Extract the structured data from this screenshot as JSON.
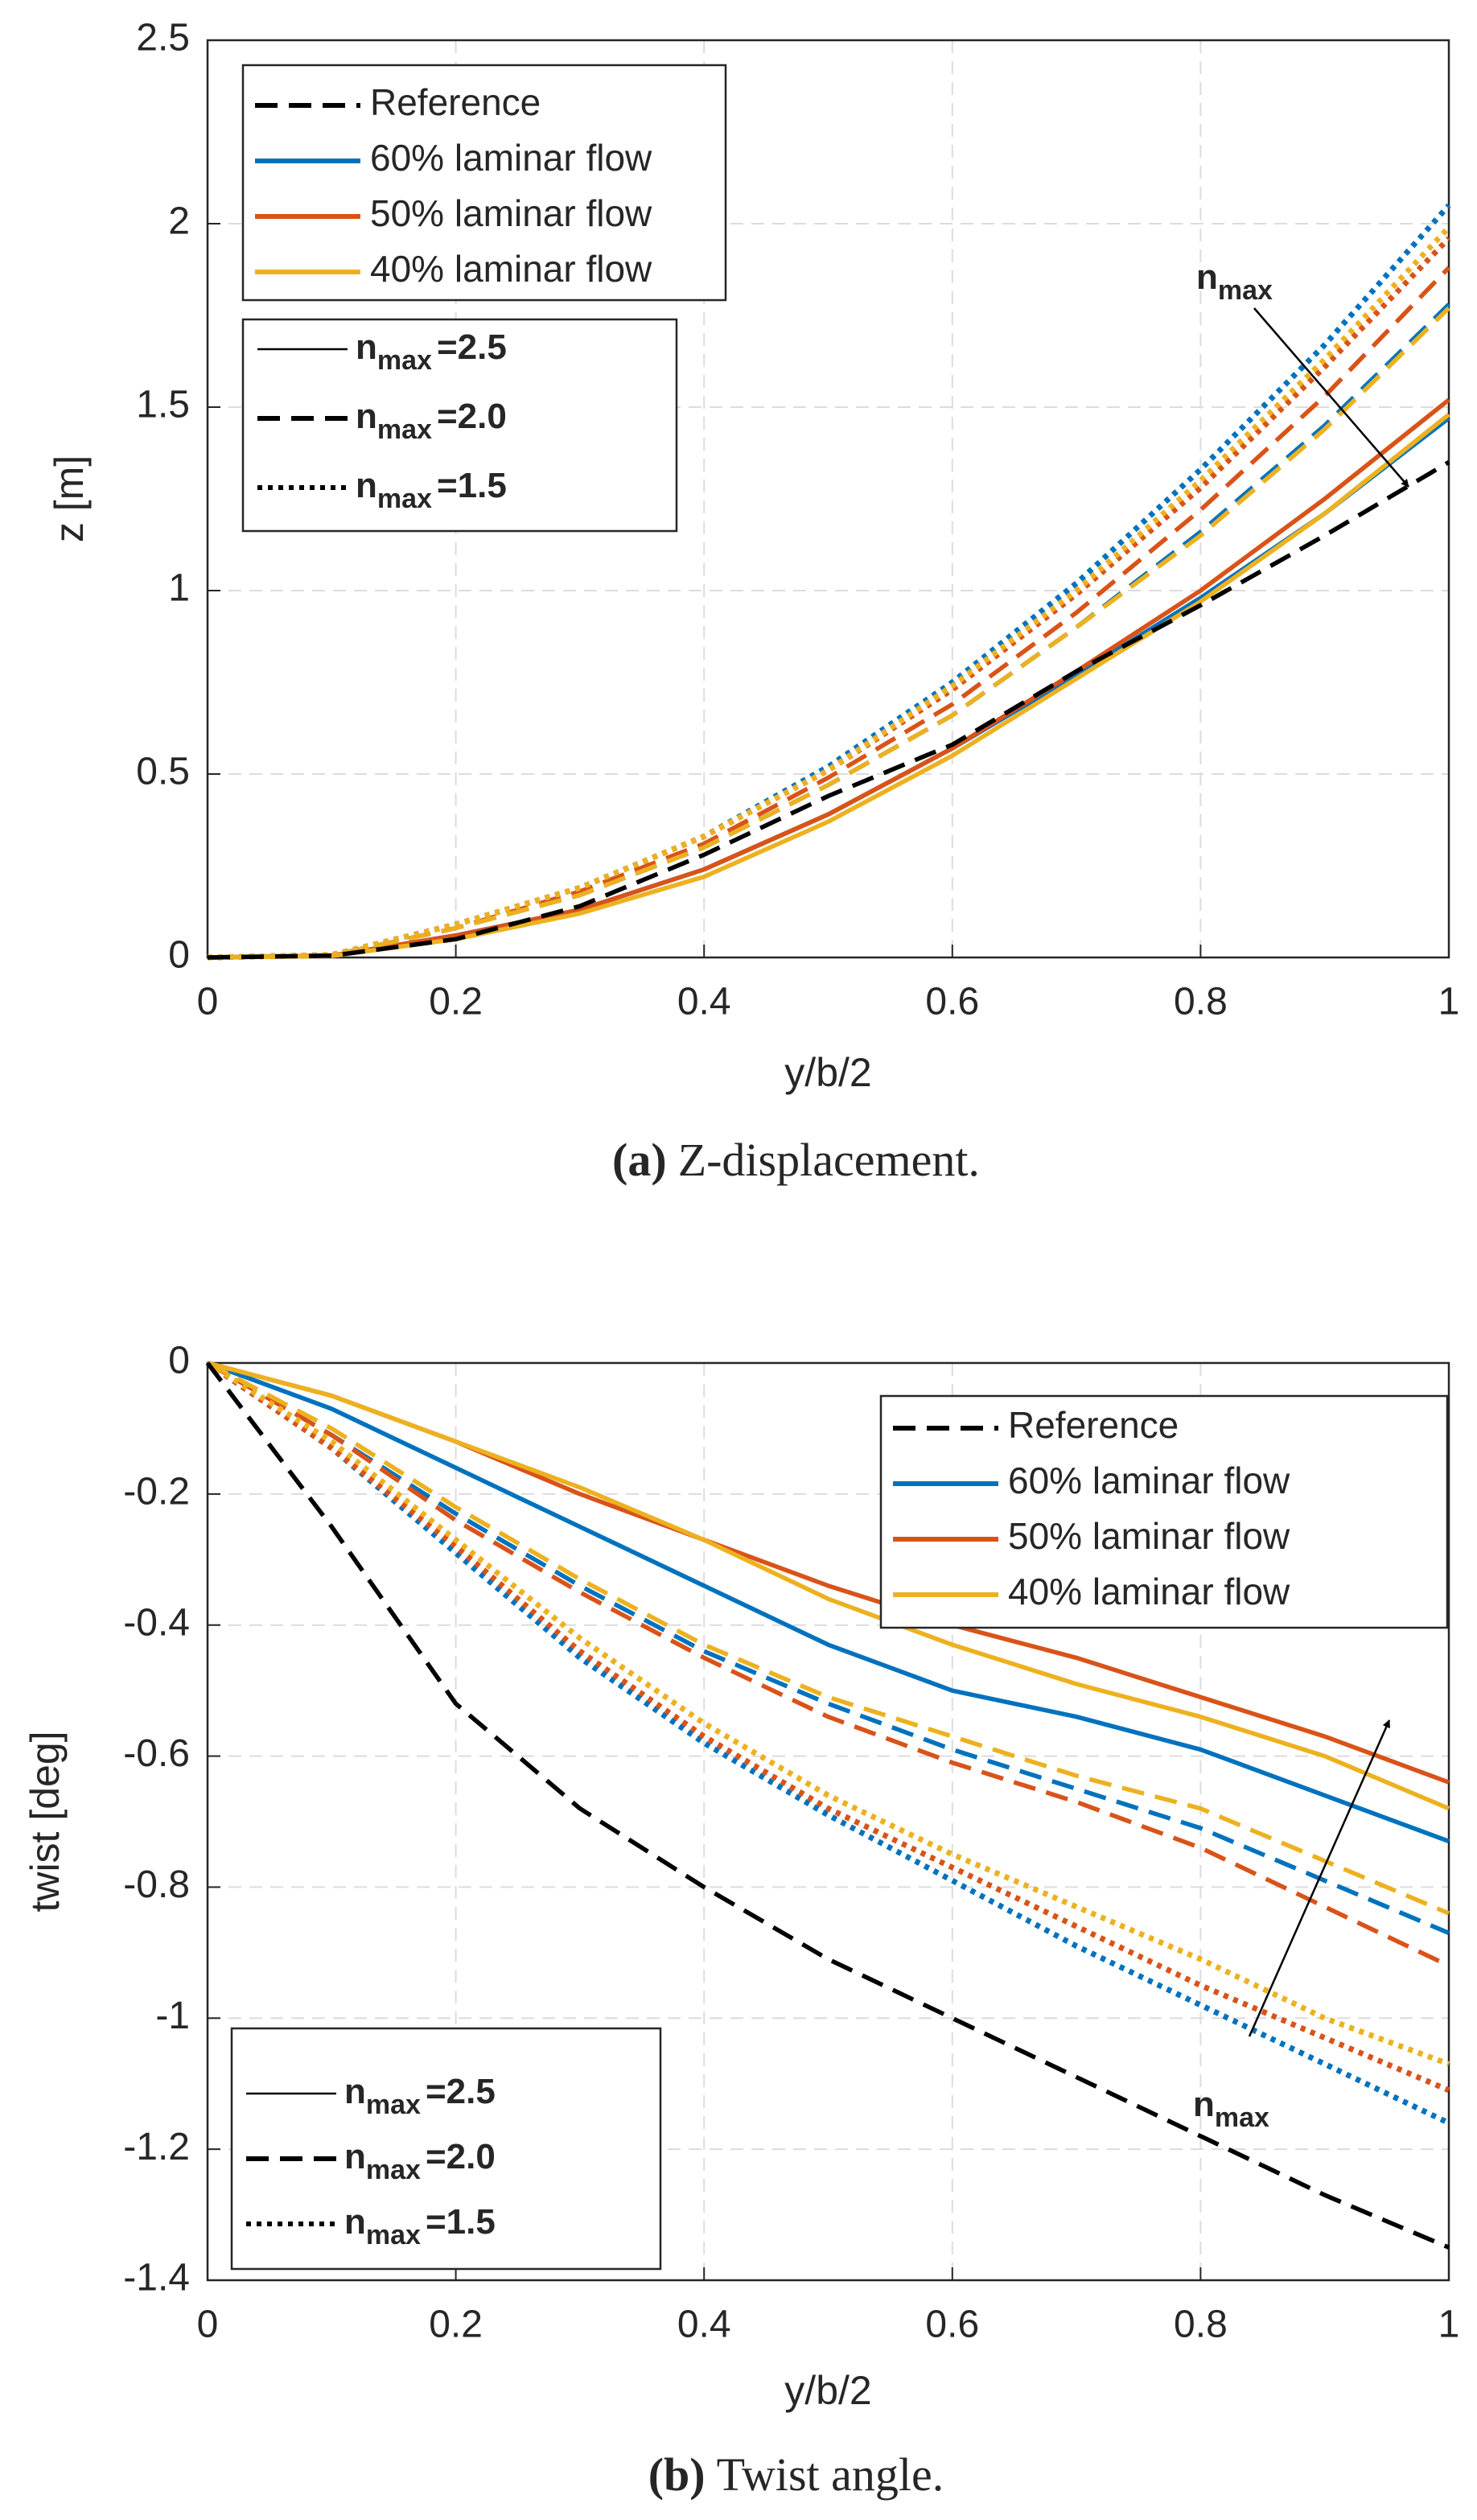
{
  "chart_data": [
    {
      "type": "line",
      "xlabel": "y/b/2",
      "ylabel": "z [m]",
      "caption_label": "(a)",
      "caption": "Z-displacement.",
      "symbol": "n",
      "subscript": "max",
      "grid": true,
      "xlim": [
        0,
        1
      ],
      "xticks": [
        0,
        0.2,
        0.4,
        0.6,
        0.8,
        1
      ],
      "ylim": [
        0,
        2.5
      ],
      "yticks": [
        0,
        0.5,
        1,
        1.5,
        2,
        2.5
      ],
      "x": [
        0,
        0.1,
        0.2,
        0.3,
        0.4,
        0.5,
        0.6,
        0.7,
        0.8,
        0.9,
        1
      ],
      "series": [
        {
          "name": "Reference",
          "color": "#000000",
          "style": "dashed",
          "values": [
            0,
            0.005,
            0.05,
            0.14,
            0.28,
            0.44,
            0.58,
            0.78,
            0.96,
            1.15,
            1.35
          ]
        },
        {
          "name": "60% laminar flow",
          "color": "#0072bd",
          "style": "solid",
          "values": [
            0,
            0.005,
            0.06,
            0.13,
            0.24,
            0.39,
            0.57,
            0.77,
            0.98,
            1.21,
            1.47
          ]
        },
        {
          "name": "50% laminar flow",
          "color": "#d95319",
          "style": "solid",
          "values": [
            0,
            0.005,
            0.06,
            0.13,
            0.24,
            0.39,
            0.57,
            0.78,
            1.0,
            1.25,
            1.52
          ]
        },
        {
          "name": "40% laminar flow",
          "color": "#edb120",
          "style": "solid",
          "values": [
            0,
            0.004,
            0.05,
            0.12,
            0.22,
            0.37,
            0.55,
            0.76,
            0.97,
            1.21,
            1.48
          ]
        },
        {
          "name": "60% laminar flow",
          "color": "#0072bd",
          "style": "dashed",
          "values": [
            0,
            0.006,
            0.08,
            0.17,
            0.3,
            0.47,
            0.66,
            0.9,
            1.16,
            1.45,
            1.78
          ]
        },
        {
          "name": "50% laminar flow",
          "color": "#d95319",
          "style": "dashed",
          "values": [
            0,
            0.006,
            0.08,
            0.18,
            0.31,
            0.49,
            0.69,
            0.94,
            1.22,
            1.53,
            1.88
          ]
        },
        {
          "name": "40% laminar flow",
          "color": "#edb120",
          "style": "dashed",
          "values": [
            0,
            0.006,
            0.08,
            0.17,
            0.3,
            0.47,
            0.66,
            0.9,
            1.15,
            1.44,
            1.77
          ]
        },
        {
          "name": "60% laminar flow",
          "color": "#0072bd",
          "style": "dotted",
          "values": [
            0,
            0.007,
            0.09,
            0.19,
            0.33,
            0.52,
            0.75,
            1.02,
            1.33,
            1.67,
            2.05
          ]
        },
        {
          "name": "50% laminar flow",
          "color": "#d95319",
          "style": "dotted",
          "values": [
            0,
            0.007,
            0.09,
            0.19,
            0.33,
            0.51,
            0.73,
            0.99,
            1.28,
            1.61,
            1.96
          ]
        },
        {
          "name": "40% laminar flow",
          "color": "#edb120",
          "style": "dotted",
          "values": [
            0,
            0.007,
            0.09,
            0.19,
            0.33,
            0.51,
            0.74,
            1.0,
            1.3,
            1.63,
            1.99
          ]
        }
      ],
      "nmax_legend": [
        {
          "style": "solid",
          "value": 2.5,
          "label": "=2.5"
        },
        {
          "style": "dashed",
          "value": 2.0,
          "label": "=2.0"
        },
        {
          "style": "dotted",
          "value": 1.5,
          "label": "=1.5"
        }
      ],
      "legend_position": "upper left"
    },
    {
      "type": "line",
      "xlabel": "y/b/2",
      "ylabel": "twist [deg]",
      "caption_label": "(b)",
      "caption": "Twist angle.",
      "symbol": "n",
      "subscript": "max",
      "grid": true,
      "xlim": [
        0,
        1
      ],
      "xticks": [
        0,
        0.2,
        0.4,
        0.6,
        0.8,
        1
      ],
      "ylim": [
        -1.4,
        0
      ],
      "yticks": [
        -1.4,
        -1.2,
        -1,
        -0.8,
        -0.6,
        -0.4,
        -0.2,
        0
      ],
      "x": [
        0,
        0.1,
        0.2,
        0.3,
        0.4,
        0.5,
        0.6,
        0.7,
        0.8,
        0.9,
        1
      ],
      "series": [
        {
          "name": "Reference",
          "color": "#000000",
          "style": "dashed",
          "values": [
            0,
            -0.25,
            -0.52,
            -0.68,
            -0.8,
            -0.91,
            -1.0,
            -1.09,
            -1.18,
            -1.27,
            -1.35
          ]
        },
        {
          "name": "60% laminar flow",
          "color": "#0072bd",
          "style": "solid",
          "values": [
            0,
            -0.07,
            -0.16,
            -0.25,
            -0.34,
            -0.43,
            -0.5,
            -0.54,
            -0.59,
            -0.66,
            -0.73
          ]
        },
        {
          "name": "50% laminar flow",
          "color": "#d95319",
          "style": "solid",
          "values": [
            0,
            -0.05,
            -0.12,
            -0.2,
            -0.27,
            -0.34,
            -0.4,
            -0.45,
            -0.51,
            -0.57,
            -0.64
          ]
        },
        {
          "name": "40% laminar flow",
          "color": "#edb120",
          "style": "solid",
          "values": [
            0,
            -0.05,
            -0.12,
            -0.19,
            -0.27,
            -0.36,
            -0.43,
            -0.49,
            -0.54,
            -0.6,
            -0.68
          ]
        },
        {
          "name": "60% laminar flow",
          "color": "#0072bd",
          "style": "dashed",
          "values": [
            0,
            -0.11,
            -0.23,
            -0.34,
            -0.44,
            -0.52,
            -0.59,
            -0.65,
            -0.71,
            -0.79,
            -0.87
          ]
        },
        {
          "name": "50% laminar flow",
          "color": "#d95319",
          "style": "dashed",
          "values": [
            0,
            -0.11,
            -0.24,
            -0.35,
            -0.45,
            -0.54,
            -0.61,
            -0.67,
            -0.74,
            -0.83,
            -0.92
          ]
        },
        {
          "name": "40% laminar flow",
          "color": "#edb120",
          "style": "dashed",
          "values": [
            0,
            -0.1,
            -0.22,
            -0.33,
            -0.43,
            -0.51,
            -0.57,
            -0.63,
            -0.68,
            -0.76,
            -0.84
          ]
        },
        {
          "name": "60% laminar flow",
          "color": "#0072bd",
          "style": "dotted",
          "values": [
            0,
            -0.13,
            -0.29,
            -0.45,
            -0.58,
            -0.69,
            -0.79,
            -0.89,
            -0.98,
            -1.07,
            -1.16
          ]
        },
        {
          "name": "50% laminar flow",
          "color": "#d95319",
          "style": "dotted",
          "values": [
            0,
            -0.13,
            -0.28,
            -0.44,
            -0.57,
            -0.68,
            -0.77,
            -0.86,
            -0.95,
            -1.03,
            -1.11
          ]
        },
        {
          "name": "40% laminar flow",
          "color": "#edb120",
          "style": "dotted",
          "values": [
            0,
            -0.12,
            -0.27,
            -0.42,
            -0.55,
            -0.66,
            -0.75,
            -0.83,
            -0.91,
            -1.0,
            -1.07
          ]
        }
      ],
      "nmax_legend": [
        {
          "style": "solid",
          "value": 2.5,
          "label": "=2.5"
        },
        {
          "style": "dashed",
          "value": 2.0,
          "label": "=2.0"
        },
        {
          "style": "dotted",
          "value": 1.5,
          "label": "=1.5"
        }
      ],
      "legend_position": "upper right"
    }
  ]
}
